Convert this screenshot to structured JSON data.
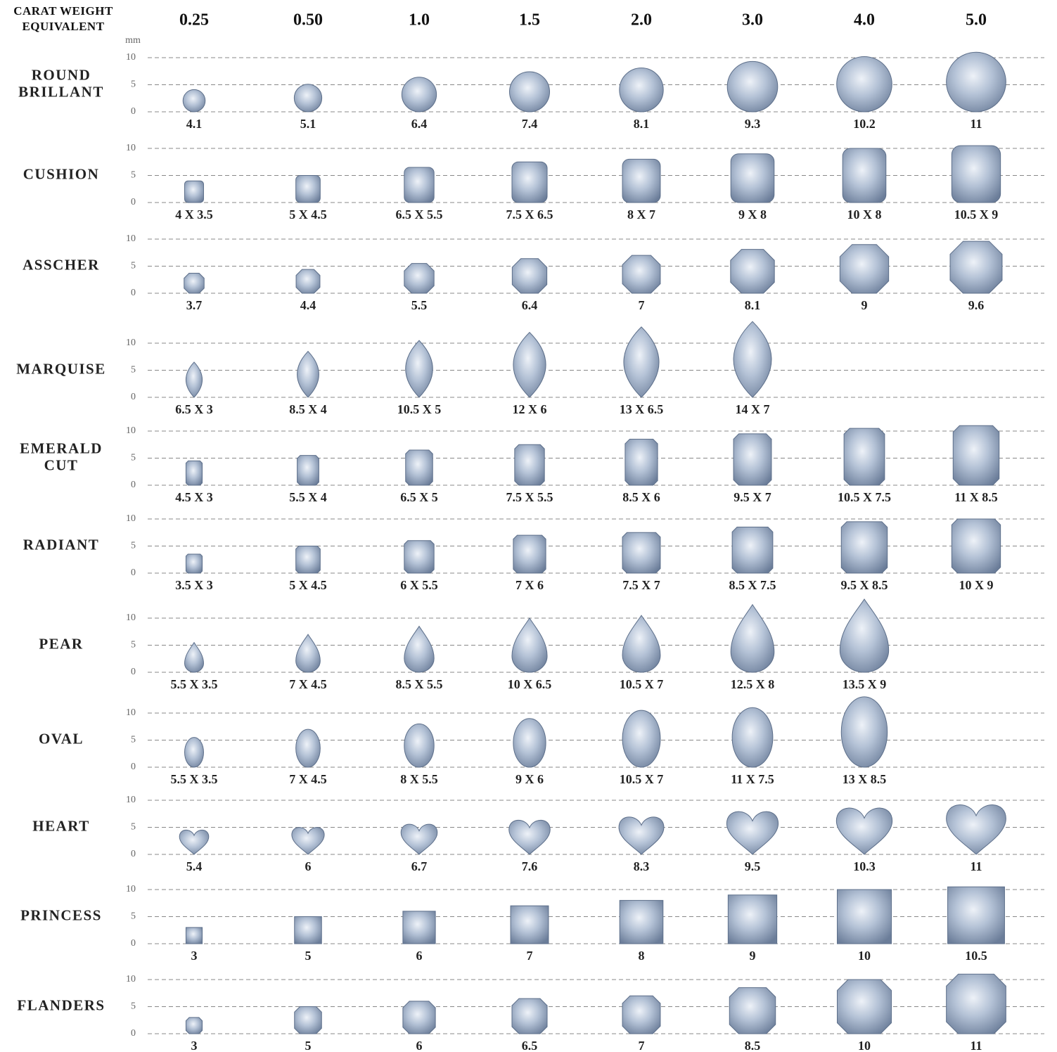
{
  "header": {
    "title": [
      "CARAT WEIGHT",
      "EQUIVALENT"
    ],
    "carats": [
      "0.25",
      "0.50",
      "1.0",
      "1.5",
      "2.0",
      "3.0",
      "4.0",
      "5.0"
    ]
  },
  "axis": {
    "unit": "mm",
    "range": [
      0,
      10
    ],
    "ticks": [
      0,
      5,
      10
    ]
  },
  "rows": [
    {
      "name": [
        "ROUND",
        "BRILLANT"
      ],
      "shape": "round",
      "cells": [
        4.1,
        5.1,
        6.4,
        7.4,
        8.1,
        9.3,
        10.2,
        11
      ]
    },
    {
      "name": [
        "CUSHION"
      ],
      "shape": "cushion",
      "cells": [
        {
          "values": [
            4,
            3.5
          ],
          "label": "4 X 3.5"
        },
        {
          "values": [
            5,
            4.5
          ],
          "label": "5 X 4.5"
        },
        {
          "values": [
            6.5,
            5.5
          ],
          "label": "6.5 X 5.5"
        },
        {
          "values": [
            7.5,
            6.5
          ],
          "label": "7.5 X 6.5"
        },
        {
          "values": [
            8,
            7
          ],
          "label": "8 X 7"
        },
        {
          "values": [
            9,
            8
          ],
          "label": "9 X 8"
        },
        {
          "values": [
            10,
            8
          ],
          "label": "10 X 8"
        },
        {
          "values": [
            10.5,
            9
          ],
          "label": "10.5 X 9"
        }
      ]
    },
    {
      "name": [
        "ASSCHER"
      ],
      "shape": "asscher",
      "cells": [
        3.7,
        4.4,
        5.5,
        6.4,
        7,
        8.1,
        9,
        9.6
      ]
    },
    {
      "name": [
        "MARQUISE"
      ],
      "shape": "marquise",
      "cells": [
        {
          "values": [
            6.5,
            3
          ],
          "label": "6.5 X 3"
        },
        {
          "values": [
            8.5,
            4
          ],
          "label": "8.5 X 4"
        },
        {
          "values": [
            10.5,
            5
          ],
          "label": "10.5 X 5"
        },
        {
          "values": [
            12,
            6
          ],
          "label": "12 X 6"
        },
        {
          "values": [
            13,
            6.5
          ],
          "label": "13 X 6.5"
        },
        {
          "values": [
            14,
            7
          ],
          "label": "14 X 7"
        },
        null,
        null
      ]
    },
    {
      "name": [
        "EMERALD",
        "CUT"
      ],
      "shape": "emerald",
      "cells": [
        {
          "values": [
            4.5,
            3
          ],
          "label": "4.5 X 3"
        },
        {
          "values": [
            5.5,
            4
          ],
          "label": "5.5 X 4"
        },
        {
          "values": [
            6.5,
            5
          ],
          "label": "6.5 X 5"
        },
        {
          "values": [
            7.5,
            5.5
          ],
          "label": "7.5 X 5.5"
        },
        {
          "values": [
            8.5,
            6
          ],
          "label": "8.5 X 6"
        },
        {
          "values": [
            9.5,
            7
          ],
          "label": "9.5 X 7"
        },
        {
          "values": [
            10.5,
            7.5
          ],
          "label": "10.5 X 7.5"
        },
        {
          "values": [
            11,
            8.5
          ],
          "label": "11 X 8.5"
        }
      ]
    },
    {
      "name": [
        "RADIANT"
      ],
      "shape": "radiant",
      "cells": [
        {
          "values": [
            3.5,
            3
          ],
          "label": "3.5 X 3"
        },
        {
          "values": [
            5,
            4.5
          ],
          "label": "5 X 4.5"
        },
        {
          "values": [
            6,
            5.5
          ],
          "label": "6 X 5.5"
        },
        {
          "values": [
            7,
            6
          ],
          "label": "7 X 6"
        },
        {
          "values": [
            7.5,
            7
          ],
          "label": "7.5 X 7"
        },
        {
          "values": [
            8.5,
            7.5
          ],
          "label": "8.5 X 7.5"
        },
        {
          "values": [
            9.5,
            8.5
          ],
          "label": "9.5 X 8.5"
        },
        {
          "values": [
            10,
            9
          ],
          "label": "10 X 9"
        }
      ]
    },
    {
      "name": [
        "PEAR"
      ],
      "shape": "pear",
      "cells": [
        {
          "values": [
            5.5,
            3.5
          ],
          "label": "5.5 X 3.5"
        },
        {
          "values": [
            7,
            4.5
          ],
          "label": "7 X 4.5"
        },
        {
          "values": [
            8.5,
            5.5
          ],
          "label": "8.5 X 5.5"
        },
        {
          "values": [
            10,
            6.5
          ],
          "label": "10 X 6.5"
        },
        {
          "values": [
            10.5,
            7
          ],
          "label": "10.5 X 7"
        },
        {
          "values": [
            12.5,
            8
          ],
          "label": "12.5 X 8"
        },
        {
          "values": [
            13.5,
            9
          ],
          "label": "13.5 X 9"
        },
        null
      ]
    },
    {
      "name": [
        "OVAL"
      ],
      "shape": "oval",
      "cells": [
        {
          "values": [
            5.5,
            3.5
          ],
          "label": "5.5 X 3.5"
        },
        {
          "values": [
            7,
            4.5
          ],
          "label": "7 X 4.5"
        },
        {
          "values": [
            8,
            5.5
          ],
          "label": "8 X 5.5"
        },
        {
          "values": [
            9,
            6
          ],
          "label": "9 X 6"
        },
        {
          "values": [
            10.5,
            7
          ],
          "label": "10.5 X 7"
        },
        {
          "values": [
            11,
            7.5
          ],
          "label": "11 X 7.5"
        },
        {
          "values": [
            13,
            8.5
          ],
          "label": "13 X 8.5"
        },
        null
      ]
    },
    {
      "name": [
        "HEART"
      ],
      "shape": "heart",
      "cells": [
        5.4,
        6,
        6.7,
        7.6,
        8.3,
        9.5,
        10.3,
        11
      ]
    },
    {
      "name": [
        "PRINCESS"
      ],
      "shape": "princess",
      "cells": [
        3,
        5,
        6,
        7,
        8,
        9,
        10,
        10.5
      ]
    },
    {
      "name": [
        "FLANDERS"
      ],
      "shape": "flanders",
      "cells": [
        3,
        5,
        6,
        6.5,
        7,
        8.5,
        10,
        11
      ]
    }
  ]
}
